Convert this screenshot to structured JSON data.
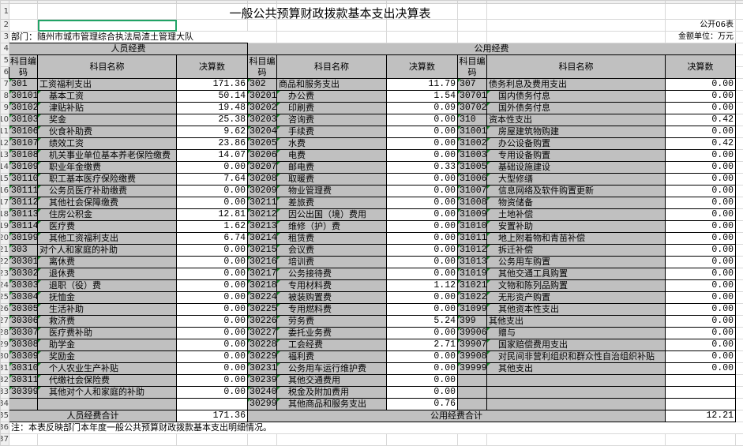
{
  "title": "一般公共预算财政拨款基本支出决算表",
  "table_no": "公开06表",
  "unit": "金额单位：万元",
  "department": "部门：随州市城市管理综合执法局渣土管理大队",
  "headers": {
    "personnel": "人员经费",
    "public": "公用经费",
    "code": "科目编码",
    "name": "科目名称",
    "amount": "决算数"
  },
  "personnel": [
    {
      "code": "301",
      "name": "工资福利支出",
      "amount": "171.36"
    },
    {
      "code": "30101",
      "name": "基本工资",
      "amount": "50.14"
    },
    {
      "code": "30102",
      "name": "津贴补贴",
      "amount": "19.48"
    },
    {
      "code": "30103",
      "name": "奖金",
      "amount": "25.38"
    },
    {
      "code": "30106",
      "name": "伙食补助费",
      "amount": "9.62"
    },
    {
      "code": "30107",
      "name": "绩效工资",
      "amount": "23.86"
    },
    {
      "code": "30108",
      "name": "机关事业单位基本养老保险缴费",
      "amount": "14.07"
    },
    {
      "code": "30109",
      "name": "职业年金缴费",
      "amount": "0.00"
    },
    {
      "code": "30110",
      "name": "职工基本医疗保险缴费",
      "amount": "7.64"
    },
    {
      "code": "30111",
      "name": "公务员医疗补助缴费",
      "amount": "0.00"
    },
    {
      "code": "30112",
      "name": "其他社会保障缴费",
      "amount": "0.00"
    },
    {
      "code": "30113",
      "name": "住房公积金",
      "amount": "12.81"
    },
    {
      "code": "30114",
      "name": "医疗费",
      "amount": "1.62"
    },
    {
      "code": "30199",
      "name": "其他工资福利支出",
      "amount": "6.74"
    },
    {
      "code": "303",
      "name": "对个人和家庭的补助",
      "amount": "0.00"
    },
    {
      "code": "30301",
      "name": "离休费",
      "amount": "0.00"
    },
    {
      "code": "30302",
      "name": "退休费",
      "amount": "0.00"
    },
    {
      "code": "30303",
      "name": "退职（役）费",
      "amount": "0.00"
    },
    {
      "code": "30304",
      "name": "抚恤金",
      "amount": "0.00"
    },
    {
      "code": "30305",
      "name": "生活补助",
      "amount": "0.00"
    },
    {
      "code": "30306",
      "name": "救济费",
      "amount": "0.00"
    },
    {
      "code": "30307",
      "name": "医疗费补助",
      "amount": "0.00"
    },
    {
      "code": "30308",
      "name": "助学金",
      "amount": "0.00"
    },
    {
      "code": "30309",
      "name": "奖励金",
      "amount": "0.00"
    },
    {
      "code": "30310",
      "name": "个人农业生产补贴",
      "amount": "0.00"
    },
    {
      "code": "30311",
      "name": "代缴社会保险费",
      "amount": "0.00"
    },
    {
      "code": "30399",
      "name": "其他对个人和家庭的补助",
      "amount": "0.00"
    },
    {
      "code": "",
      "name": "",
      "amount": ""
    }
  ],
  "public_goods": [
    {
      "code": "302",
      "name": "商品和服务支出",
      "amount": "11.79"
    },
    {
      "code": "30201",
      "name": "办公费",
      "amount": "1.54"
    },
    {
      "code": "30202",
      "name": "印刷费",
      "amount": "0.09"
    },
    {
      "code": "30203",
      "name": "咨询费",
      "amount": "0.00"
    },
    {
      "code": "30204",
      "name": "手续费",
      "amount": "0.00"
    },
    {
      "code": "30205",
      "name": "水费",
      "amount": "0.00"
    },
    {
      "code": "30206",
      "name": "电费",
      "amount": "0.00"
    },
    {
      "code": "30207",
      "name": "邮电费",
      "amount": "0.33"
    },
    {
      "code": "30208",
      "name": "取暖费",
      "amount": "0.00"
    },
    {
      "code": "30209",
      "name": "物业管理费",
      "amount": "0.00"
    },
    {
      "code": "30211",
      "name": "差旅费",
      "amount": "0.00"
    },
    {
      "code": "30212",
      "name": "因公出国（境）费用",
      "amount": "0.00"
    },
    {
      "code": "30213",
      "name": "维修（护）费",
      "amount": "0.00"
    },
    {
      "code": "30214",
      "name": "租赁费",
      "amount": "0.00"
    },
    {
      "code": "30215",
      "name": "会议费",
      "amount": "0.00"
    },
    {
      "code": "30216",
      "name": "培训费",
      "amount": "0.00"
    },
    {
      "code": "30217",
      "name": "公务接待费",
      "amount": "0.00"
    },
    {
      "code": "30218",
      "name": "专用材料费",
      "amount": "1.12"
    },
    {
      "code": "30224",
      "name": "被装购置费",
      "amount": "0.00"
    },
    {
      "code": "30225",
      "name": "专用燃料费",
      "amount": "0.00"
    },
    {
      "code": "30226",
      "name": "劳务费",
      "amount": "5.24"
    },
    {
      "code": "30227",
      "name": "委托业务费",
      "amount": "0.00"
    },
    {
      "code": "30228",
      "name": "工会经费",
      "amount": "2.71"
    },
    {
      "code": "30229",
      "name": "福利费",
      "amount": "0.00"
    },
    {
      "code": "30231",
      "name": "公务用车运行维护费",
      "amount": "0.00"
    },
    {
      "code": "30239",
      "name": "其他交通费用",
      "amount": "0.00"
    },
    {
      "code": "30240",
      "name": "税金及附加费用",
      "amount": "0.00"
    },
    {
      "code": "30299",
      "name": "其他商品和服务支出",
      "amount": "0.76"
    }
  ],
  "public_other": [
    {
      "code": "307",
      "name": "债务利息及费用支出",
      "amount": "0.00"
    },
    {
      "code": "30701",
      "name": "国内债务付息",
      "amount": "0.00"
    },
    {
      "code": "30702",
      "name": "国外债务付息",
      "amount": "0.00"
    },
    {
      "code": "310",
      "name": "资本性支出",
      "amount": "0.42"
    },
    {
      "code": "31001",
      "name": "房屋建筑物购建",
      "amount": "0.00"
    },
    {
      "code": "31002",
      "name": "办公设备购置",
      "amount": "0.42"
    },
    {
      "code": "31003",
      "name": "专用设备购置",
      "amount": "0.00"
    },
    {
      "code": "31005",
      "name": "基础设施建设",
      "amount": "0.00"
    },
    {
      "code": "31006",
      "name": "大型修缮",
      "amount": "0.00"
    },
    {
      "code": "31007",
      "name": "信息网络及软件购置更新",
      "amount": "0.00"
    },
    {
      "code": "31008",
      "name": "物资储备",
      "amount": "0.00"
    },
    {
      "code": "31009",
      "name": "土地补偿",
      "amount": "0.00"
    },
    {
      "code": "31010",
      "name": "安置补助",
      "amount": "0.00"
    },
    {
      "code": "31011",
      "name": "地上附着物和青苗补偿",
      "amount": "0.00"
    },
    {
      "code": "31012",
      "name": "拆迁补偿",
      "amount": "0.00"
    },
    {
      "code": "31013",
      "name": "公务用车购置",
      "amount": "0.00"
    },
    {
      "code": "31019",
      "name": "其他交通工具购置",
      "amount": "0.00"
    },
    {
      "code": "31021",
      "name": "文物和陈列品购置",
      "amount": "0.00"
    },
    {
      "code": "31022",
      "name": "无形资产购置",
      "amount": "0.00"
    },
    {
      "code": "31099",
      "name": "其他资本性支出",
      "amount": "0.00"
    },
    {
      "code": "399",
      "name": "其他支出",
      "amount": "0.00"
    },
    {
      "code": "39906",
      "name": "赠与",
      "amount": "0.00"
    },
    {
      "code": "39907",
      "name": "国家赔偿费用支出",
      "amount": "0.00"
    },
    {
      "code": "39908",
      "name": "对民间非营利组织和群众性自治组织补贴",
      "amount": "0.00"
    },
    {
      "code": "39999",
      "name": "其他支出",
      "amount": "0.00"
    },
    {
      "code": "",
      "name": "",
      "amount": ""
    },
    {
      "code": "",
      "name": "",
      "amount": ""
    },
    {
      "code": "",
      "name": "",
      "amount": ""
    }
  ],
  "totals": {
    "personnel_label": "人员经费合计",
    "personnel_value": "171.36",
    "public_label": "公用经费合计",
    "public_value": "12.21"
  },
  "note": "注：本表反映部门本年度一般公共预算财政拨款基本支出明细情况。",
  "colors": {
    "header_fill": "#c0c0c0",
    "selection": "#21a366",
    "text_marker": "#1e8a2e"
  }
}
